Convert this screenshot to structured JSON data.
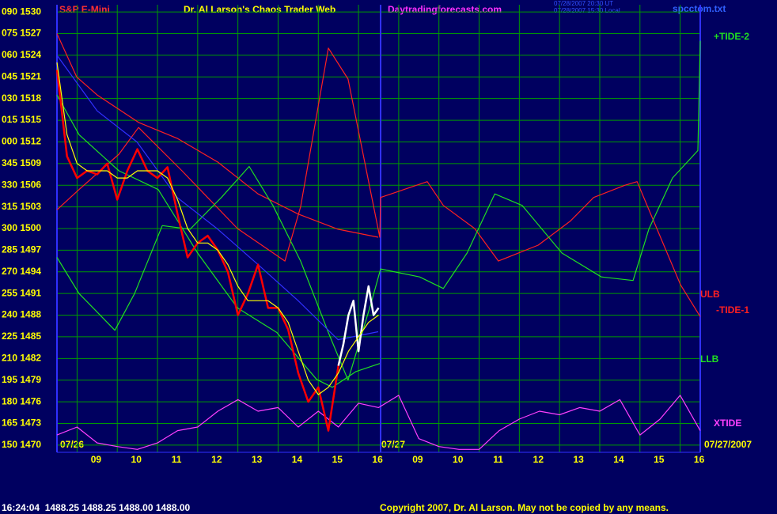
{
  "chart_data": {
    "type": "line",
    "header": {
      "symbol": "S&P E-Mini",
      "title": "Dr. Al Larson's Chaos Trader Web",
      "site": "Daytradingforecasts.com",
      "stamp_1": "07/28/2007 20:30 UT",
      "stamp_2": "07/28/2007 15:30 Local",
      "file": "spcctom.txt"
    },
    "dates": {
      "day_1": "07/26",
      "day_2": "07/27",
      "full": "07/27/2007"
    },
    "status": "16:24:04  1488.25 1488.25 1488.00 1488.00",
    "copyright": "Copyright 2007, Dr. Al Larson. May not be copied by any means.",
    "xlim": [
      0,
      16
    ],
    "ylim": [
      1469,
      1531
    ],
    "grid": true,
    "yticks": [
      {
        "value": 1530,
        "label": "090 1530"
      },
      {
        "value": 1527,
        "label": "075 1527"
      },
      {
        "value": 1524,
        "label": "060 1524"
      },
      {
        "value": 1521,
        "label": "045 1521"
      },
      {
        "value": 1518,
        "label": "030 1518"
      },
      {
        "value": 1515,
        "label": "015 1515"
      },
      {
        "value": 1512,
        "label": "000 1512"
      },
      {
        "value": 1509,
        "label": "345 1509"
      },
      {
        "value": 1506,
        "label": "330 1506"
      },
      {
        "value": 1503,
        "label": "315 1503"
      },
      {
        "value": 1500,
        "label": "300 1500"
      },
      {
        "value": 1497,
        "label": "285 1497"
      },
      {
        "value": 1494,
        "label": "270 1494"
      },
      {
        "value": 1491,
        "label": "255 1491"
      },
      {
        "value": 1488,
        "label": "240 1488"
      },
      {
        "value": 1485,
        "label": "225 1485"
      },
      {
        "value": 1482,
        "label": "210 1482"
      },
      {
        "value": 1479,
        "label": "195 1479"
      },
      {
        "value": 1476,
        "label": "180 1476"
      },
      {
        "value": 1473,
        "label": "165 1473"
      },
      {
        "value": 1470,
        "label": "150 1470"
      }
    ],
    "xticks": [
      {
        "value": 0.5,
        "label": "09"
      },
      {
        "value": 1.5,
        "label": "10"
      },
      {
        "value": 2.5,
        "label": "11"
      },
      {
        "value": 3.5,
        "label": "12"
      },
      {
        "value": 4.5,
        "label": "13"
      },
      {
        "value": 5.5,
        "label": "14"
      },
      {
        "value": 6.5,
        "label": "15"
      },
      {
        "value": 7.5,
        "label": "16"
      },
      {
        "value": 8.5,
        "label": "09"
      },
      {
        "value": 9.5,
        "label": "10"
      },
      {
        "value": 10.5,
        "label": "11"
      },
      {
        "value": 11.5,
        "label": "12"
      },
      {
        "value": 12.5,
        "label": "13"
      },
      {
        "value": 13.5,
        "label": "14"
      },
      {
        "value": 14.5,
        "label": "15"
      },
      {
        "value": 15.5,
        "label": "16"
      }
    ],
    "series": [
      {
        "name": "-TIDE-1",
        "color": "#ff2020",
        "x": [
          0,
          0.55,
          1.54,
          2.03,
          3.11,
          4.49,
          5.67,
          6.06,
          6.75,
          7.24,
          7.83,
          8.03,
          8.05,
          9.21,
          9.61,
          10.39,
          10.98,
          11.97,
          12.76,
          13.35,
          14.13,
          14.43,
          14.92,
          15.51,
          16
        ],
        "values": [
          1502.6,
          1505.4,
          1510.3,
          1514,
          1508,
          1500,
          1495.5,
          1503,
          1525,
          1520.7,
          1504.3,
          1498.8,
          1504.3,
          1506.5,
          1503.2,
          1500,
          1495.5,
          1497.7,
          1501,
          1504.3,
          1506,
          1506.5,
          1500,
          1492.2,
          1487.8
        ]
      },
      {
        "name": "ULB",
        "color": "#ff2020",
        "x": [
          0,
          0.49,
          1,
          2.03,
          2.99,
          4,
          5,
          6,
          6.99,
          7.99
        ],
        "values": [
          1527,
          1521,
          1518.5,
          1514.7,
          1512.5,
          1509.2,
          1504.8,
          1502,
          1499.9,
          1498.8
        ]
      },
      {
        "name": "LLB",
        "color": "#20e020",
        "x": [
          0,
          0.55,
          1.54,
          2.52,
          3.5,
          4.49,
          5.47,
          6.46,
          6.85,
          7.44,
          8.03
        ],
        "values": [
          1518.5,
          1513,
          1508,
          1505.4,
          1496.6,
          1489,
          1485.6,
          1479.1,
          1478,
          1480.2,
          1481.3
        ]
      },
      {
        "name": "+TIDE-2",
        "color": "#20e020",
        "x": [
          0,
          0.55,
          1.44,
          1.93,
          2.62,
          3.31,
          4.09,
          4.78,
          5.37,
          6.06,
          6.75,
          7.24,
          7.83,
          8.05,
          9.02,
          9.61,
          10.2,
          10.89,
          11.57,
          12.56,
          13.54,
          14.33,
          14.72,
          15.31,
          15.94,
          16
        ],
        "values": [
          1496,
          1491,
          1485.9,
          1491,
          1500.4,
          1499.9,
          1504.3,
          1508.6,
          1503.2,
          1495.5,
          1485.6,
          1479,
          1490,
          1494.4,
          1493.3,
          1491.7,
          1496.6,
          1504.8,
          1503.2,
          1496.6,
          1493.3,
          1492.8,
          1499.9,
          1507,
          1510.8,
          1526
        ]
      },
      {
        "name": "XTIDE",
        "color": "#ff40ff",
        "x": [
          0,
          0.5,
          1,
          1.5,
          2,
          2.5,
          3,
          3.5,
          4,
          4.5,
          5,
          5.5,
          6,
          6.5,
          7,
          7.5,
          8,
          8.5,
          9,
          9.5,
          10,
          10.5,
          11,
          11.5,
          12,
          12.5,
          13,
          13.5,
          14,
          14.5,
          15,
          15.5,
          16
        ],
        "values": [
          1471.4,
          1472.5,
          1470.3,
          1469.8,
          1469.4,
          1470.3,
          1472.0,
          1472.5,
          1474.7,
          1476.3,
          1474.7,
          1475.2,
          1472.5,
          1474.7,
          1472.5,
          1475.8,
          1475.2,
          1476.9,
          1470.9,
          1469.8,
          1469.4,
          1469.4,
          1472.0,
          1473.6,
          1474.7,
          1474.2,
          1475.2,
          1474.7,
          1476.3,
          1471.4,
          1473.6,
          1476.9,
          1472.0
        ]
      },
      {
        "color": "#3030ff",
        "x": [
          0,
          1,
          1.99,
          2.99,
          4,
          5,
          6,
          6.99,
          7.99
        ],
        "values": [
          1524,
          1516.3,
          1512,
          1504.3,
          1499.9,
          1495,
          1490,
          1484.6,
          1485.7
        ]
      },
      {
        "color": "#ff0000",
        "x": [
          0,
          0.25,
          0.5,
          0.75,
          1,
          1.25,
          1.5,
          1.75,
          2,
          2.25,
          2.5,
          2.75,
          3,
          3.25,
          3.5,
          3.75,
          4,
          4.25,
          4.5,
          4.75,
          5,
          5.25,
          5.5,
          5.75,
          6,
          6.25,
          6.5,
          6.75,
          7
        ],
        "values": [
          1522,
          1510,
          1507,
          1508,
          1507.5,
          1509,
          1504,
          1508,
          1511,
          1508,
          1507,
          1508.5,
          1502,
          1496,
          1498,
          1499,
          1497,
          1494,
          1488,
          1491,
          1495,
          1489,
          1489,
          1486,
          1480,
          1476,
          1478,
          1472,
          1481
        ]
      },
      {
        "color": "#ffffff",
        "x": [
          7,
          7.125,
          7.25,
          7.375,
          7.5,
          7.625,
          7.75,
          7.875,
          8
        ],
        "values": [
          1481,
          1484,
          1488,
          1490,
          1483,
          1488,
          1492,
          1488,
          1489
        ]
      },
      {
        "color": "#ffff00",
        "x": [
          0,
          0.25,
          0.5,
          0.75,
          1,
          1.25,
          1.5,
          1.75,
          2,
          2.25,
          2.5,
          2.75,
          3,
          3.25,
          3.5,
          3.75,
          4,
          4.25,
          4.5,
          4.75,
          5,
          5.25,
          5.5,
          5.75,
          6,
          6.25,
          6.5,
          6.75,
          7,
          7.25,
          7.5,
          7.75,
          8
        ],
        "values": [
          1523,
          1513,
          1509,
          1508,
          1508,
          1508,
          1507,
          1507,
          1508,
          1508,
          1508,
          1507,
          1504,
          1500,
          1498,
          1498,
          1497,
          1495,
          1492,
          1490,
          1490,
          1490,
          1489,
          1487,
          1483,
          1479,
          1477,
          1478,
          1480,
          1483,
          1485,
          1487,
          1488
        ]
      }
    ]
  }
}
